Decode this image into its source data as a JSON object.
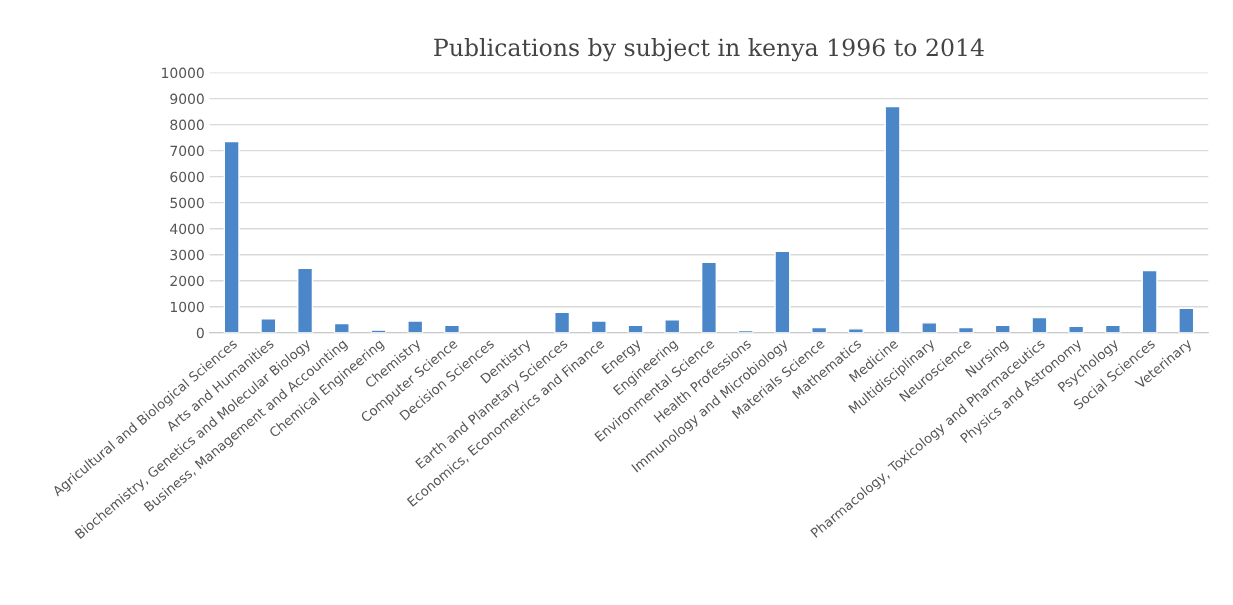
{
  "chart_data": {
    "type": "bar",
    "title": "Publications by subject in kenya 1996 to 2014",
    "categories": [
      "Agricultural and Biological Sciences",
      "Arts and Humanities",
      "Biochemistry, Genetics and Molecular Biology",
      "Business, Management and Accounting",
      "Chemical Engineering",
      "Chemistry",
      "Computer Science",
      "Decision Sciences",
      "Dentistry",
      "Earth and Planetary Sciences",
      "Economics, Econometrics and Finance",
      "Energy",
      "Engineering",
      "Environmental Science",
      "Health Professions",
      "Immunology and Microbiology",
      "Materials Science",
      "Mathematics",
      "Medicine",
      "Multidisciplinary",
      "Neuroscience",
      "Nursing",
      "Pharmacology, Toxicology and Pharmaceutics",
      "Physics and Astronomy",
      "Psychology",
      "Social Sciences",
      "Veterinary"
    ],
    "values": [
      7350,
      540,
      2480,
      350,
      100,
      450,
      290,
      null,
      null,
      790,
      450,
      290,
      500,
      2710,
      80,
      3130,
      200,
      150,
      8690,
      380,
      200,
      290,
      580,
      250,
      290,
      2390,
      940
    ],
    "color": "#4a86c8",
    "ylim": [
      0,
      10000
    ],
    "yticks": [
      0,
      1000,
      2000,
      3000,
      4000,
      5000,
      6000,
      7000,
      8000,
      9000,
      10000
    ],
    "grid": "y"
  }
}
